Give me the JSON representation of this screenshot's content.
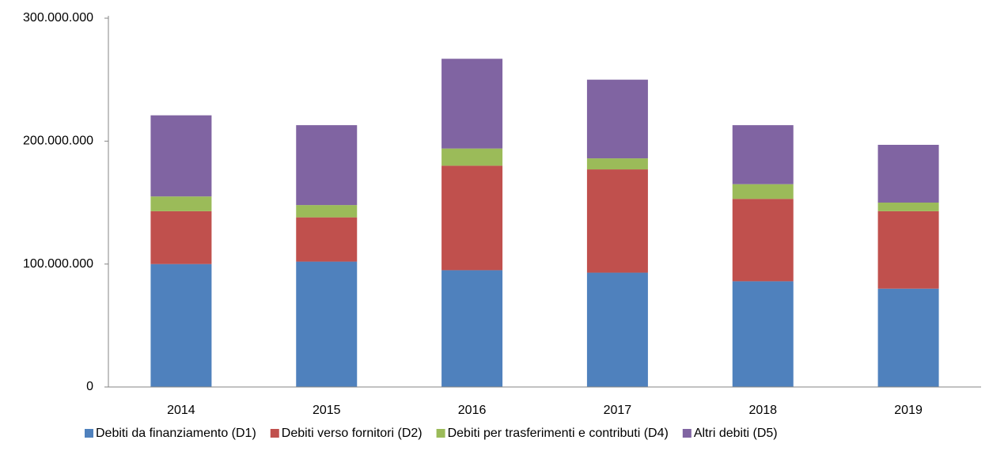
{
  "chart_data": {
    "type": "stacked_bar",
    "categories": [
      "2014",
      "2015",
      "2016",
      "2017",
      "2018",
      "2019"
    ],
    "series": [
      {
        "name": "Debiti da finanziamento (D1)",
        "color": "#4f81bd",
        "values": [
          100000000,
          102000000,
          95000000,
          93000000,
          86000000,
          80000000
        ]
      },
      {
        "name": "Debiti verso fornitori (D2)",
        "color": "#c0504d",
        "values": [
          43000000,
          36000000,
          85000000,
          84000000,
          67000000,
          63000000
        ]
      },
      {
        "name": "Debiti per trasferimenti e contributi (D4)",
        "color": "#9bbb59",
        "values": [
          12000000,
          10000000,
          14000000,
          9000000,
          12000000,
          7000000
        ]
      },
      {
        "name": "Altri debiti (D5)",
        "color": "#8064a2",
        "values": [
          66000000,
          65000000,
          73000000,
          64000000,
          48000000,
          47000000
        ]
      }
    ],
    "ylim": [
      0,
      300000000
    ],
    "yticks": [
      0,
      {
        "value": 100000000,
        "label": "100.000.000"
      },
      {
        "value": 200000000,
        "label": "200.000.000"
      },
      {
        "value": 300000000,
        "label": "300.000.000"
      }
    ],
    "grid": false,
    "legend": "bottom"
  }
}
